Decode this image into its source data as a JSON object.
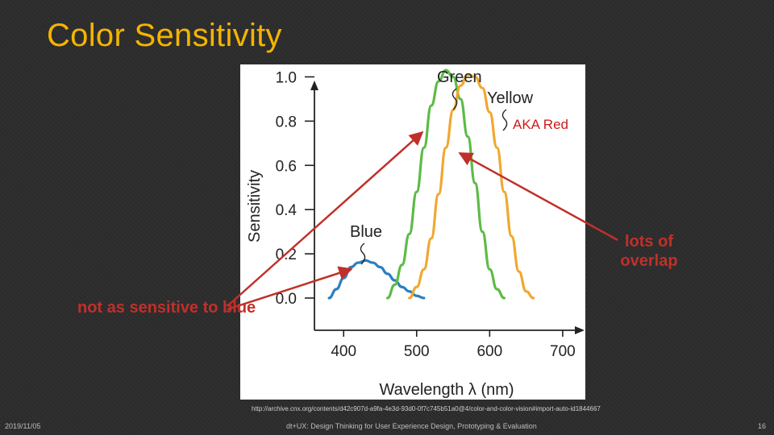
{
  "slide": {
    "title": "Color Sensitivity",
    "source_url": "http://archive.cnx.org/contents/d42c907d-a9fa-4e3d-93d0-0f7c745b51a0@4/color-and-color-vision#import-auto-id1844667",
    "footer_date": "2019/11/05",
    "footer_text": "dt+UX: Design Thinking for User Experience Design, Prototyping & Evaluation",
    "page_number": "16"
  },
  "annotations": {
    "aka_red": "AKA Red",
    "lots_of_overlap": "lots of overlap",
    "not_as_sensitive": "not as sensitive to blue",
    "arrow_color": "#c0302a"
  },
  "chart_data": {
    "type": "line",
    "xlabel": "Wavelength λ (nm)",
    "ylabel": "Sensitivity",
    "xlim": [
      360,
      720
    ],
    "ylim": [
      0,
      1.1
    ],
    "x_ticks": [
      "400",
      "500",
      "600",
      "700"
    ],
    "y_ticks": [
      "0.0",
      "0.2",
      "0.4",
      "0.6",
      "0.8",
      "1.0"
    ],
    "series": [
      {
        "name": "Blue",
        "color": "#2a7fbf",
        "x": [
          380,
          390,
          400,
          410,
          420,
          430,
          440,
          450,
          460,
          470,
          480,
          490,
          500,
          510
        ],
        "y": [
          0.0,
          0.04,
          0.09,
          0.14,
          0.16,
          0.17,
          0.16,
          0.14,
          0.11,
          0.08,
          0.05,
          0.03,
          0.01,
          0.0
        ]
      },
      {
        "name": "Green",
        "color": "#5dbb46",
        "x": [
          460,
          470,
          480,
          490,
          500,
          510,
          520,
          530,
          540,
          550,
          560,
          570,
          580,
          590,
          600,
          610,
          620
        ],
        "y": [
          0.0,
          0.06,
          0.15,
          0.29,
          0.48,
          0.68,
          0.87,
          0.98,
          1.03,
          1.0,
          0.9,
          0.73,
          0.52,
          0.3,
          0.13,
          0.04,
          0.0
        ]
      },
      {
        "name": "Yellow",
        "color": "#f0a830",
        "x": [
          490,
          500,
          510,
          520,
          530,
          540,
          550,
          560,
          570,
          580,
          590,
          600,
          610,
          620,
          630,
          640,
          650,
          660
        ],
        "y": [
          0.0,
          0.05,
          0.13,
          0.27,
          0.47,
          0.68,
          0.85,
          0.96,
          1.01,
          1.0,
          0.95,
          0.84,
          0.68,
          0.48,
          0.28,
          0.12,
          0.03,
          0.0
        ]
      }
    ]
  }
}
